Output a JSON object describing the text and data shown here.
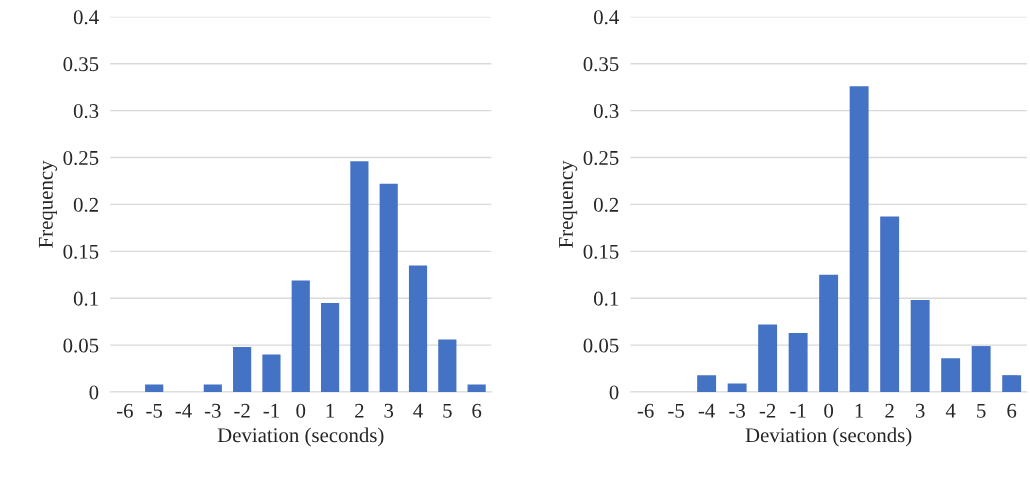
{
  "chart_data": [
    {
      "type": "bar",
      "xlabel": "Deviation (seconds)",
      "ylabel": "Frequency",
      "categories": [
        "-6",
        "-5",
        "-4",
        "-3",
        "-2",
        "-1",
        "0",
        "1",
        "2",
        "3",
        "4",
        "5",
        "6"
      ],
      "color": "#4472c4",
      "values": [
        0,
        0.008,
        0,
        0.008,
        0.048,
        0.04,
        0.119,
        0.095,
        0.246,
        0.222,
        0.135,
        0.056,
        0.008
      ],
      "ylim": [
        0,
        0.4
      ],
      "yticks": [
        0,
        0.05,
        0.1,
        0.15,
        0.2,
        0.25,
        0.3,
        0.35,
        0.4
      ],
      "grid": "y"
    },
    {
      "type": "bar",
      "xlabel": "Deviation (seconds)",
      "ylabel": "Frequency",
      "categories": [
        "-6",
        "-5",
        "-4",
        "-3",
        "-2",
        "-1",
        "0",
        "1",
        "2",
        "3",
        "4",
        "5",
        "6"
      ],
      "color": "#4472c4",
      "values": [
        0,
        0,
        0.018,
        0.009,
        0.072,
        0.063,
        0.125,
        0.326,
        0.187,
        0.098,
        0.036,
        0.049,
        0.018
      ],
      "ylim": [
        0,
        0.4
      ],
      "yticks": [
        0,
        0.05,
        0.1,
        0.15,
        0.2,
        0.25,
        0.3,
        0.35,
        0.4
      ],
      "grid": "y"
    }
  ]
}
